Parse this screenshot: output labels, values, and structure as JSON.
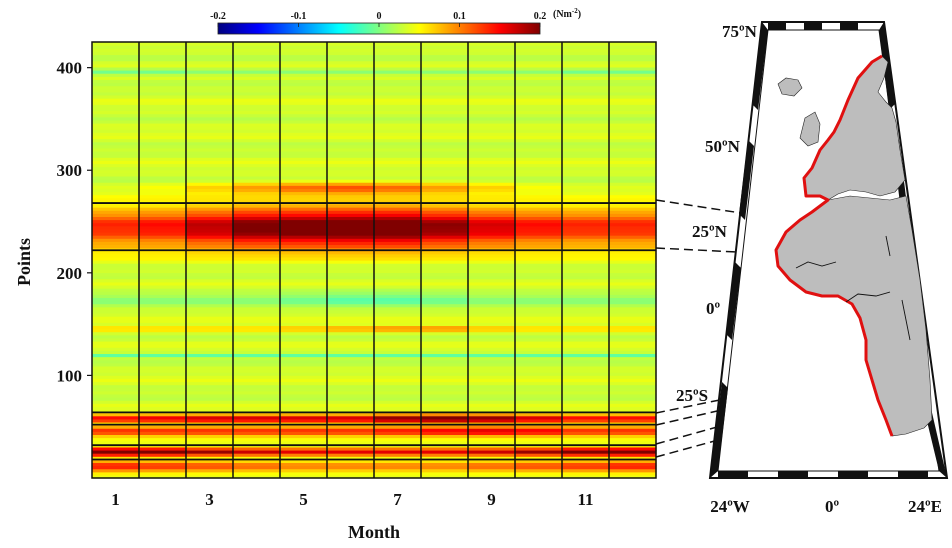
{
  "chart_data": {
    "type": "heatmap",
    "xlabel": "Month",
    "ylabel": "Points",
    "x_ticks": [
      "1",
      "3",
      "5",
      "7",
      "9",
      "11"
    ],
    "y_ticks": [
      "100",
      "200",
      "300",
      "400"
    ],
    "x_range": [
      0,
      12
    ],
    "y_range": [
      0,
      425
    ],
    "months": [
      1,
      2,
      3,
      4,
      5,
      6,
      7,
      8,
      9,
      10,
      11,
      12
    ],
    "colorbar": {
      "ticks": [
        "-0.2",
        "-0.1",
        "0",
        "0.1",
        "0.2"
      ],
      "range": [
        -0.2,
        0.2
      ],
      "unit_base": "(Nm",
      "unit_exp": "-2",
      "unit_close": ")",
      "colormap": "jet"
    },
    "highlight_boundaries": [
      18,
      32,
      52,
      64,
      222,
      268
    ],
    "features": [
      {
        "center": 244,
        "halfwidth": 20,
        "peak_by_month": [
          0.1,
          0.11,
          0.14,
          0.17,
          0.18,
          0.19,
          0.19,
          0.16,
          0.13,
          0.11,
          0.1,
          0.1
        ]
      },
      {
        "center": 283,
        "halfwidth": 6,
        "peak_by_month": [
          0.0,
          0.01,
          0.03,
          0.05,
          0.07,
          0.08,
          0.07,
          0.05,
          0.03,
          0.01,
          0.0,
          0.0
        ]
      },
      {
        "center": 58,
        "halfwidth": 4,
        "peak_by_month": [
          0.12,
          0.13,
          0.14,
          0.14,
          0.14,
          0.14,
          0.17,
          0.18,
          0.17,
          0.14,
          0.12,
          0.12
        ]
      },
      {
        "center": 46,
        "halfwidth": 5,
        "peak_by_month": [
          0.1,
          0.1,
          0.1,
          0.1,
          0.1,
          0.1,
          0.11,
          0.12,
          0.13,
          0.12,
          0.1,
          0.1
        ]
      },
      {
        "center": 26,
        "halfwidth": 4,
        "peak_by_month": [
          0.2,
          0.19,
          0.16,
          0.14,
          0.13,
          0.13,
          0.13,
          0.13,
          0.14,
          0.16,
          0.19,
          0.2
        ]
      },
      {
        "center": 12,
        "halfwidth": 6,
        "peak_by_month": [
          0.1,
          0.09,
          0.08,
          0.07,
          0.06,
          0.06,
          0.06,
          0.06,
          0.07,
          0.08,
          0.09,
          0.1
        ]
      },
      {
        "center": 146,
        "halfwidth": 3,
        "peak_by_month": [
          0.04,
          0.04,
          0.04,
          0.04,
          0.05,
          0.06,
          0.07,
          0.07,
          0.05,
          0.04,
          0.04,
          0.04
        ]
      },
      {
        "center": 120,
        "halfwidth": 2,
        "peak_by_month": [
          -0.05,
          -0.05,
          -0.05,
          -0.05,
          -0.05,
          -0.05,
          -0.05,
          -0.05,
          -0.05,
          -0.05,
          -0.05,
          -0.05
        ]
      },
      {
        "center": 396,
        "halfwidth": 3,
        "peak_by_month": [
          -0.04,
          -0.04,
          -0.03,
          -0.03,
          -0.03,
          -0.03,
          -0.03,
          -0.03,
          -0.03,
          -0.03,
          -0.04,
          -0.04
        ]
      },
      {
        "center": 175,
        "halfwidth": 8,
        "peak_by_month": [
          -0.02,
          -0.02,
          -0.02,
          -0.02,
          -0.03,
          -0.04,
          -0.04,
          -0.03,
          -0.02,
          -0.02,
          -0.02,
          -0.02
        ]
      }
    ]
  },
  "map": {
    "lat_labels": [
      "75ºN",
      "50ºN",
      "25ºN",
      "0º",
      "25ºS"
    ],
    "lon_labels": [
      "24ºW",
      "0º",
      "24ºE"
    ],
    "land_color": "#bdbdbd",
    "coast_highlight_color": "#e01010"
  }
}
